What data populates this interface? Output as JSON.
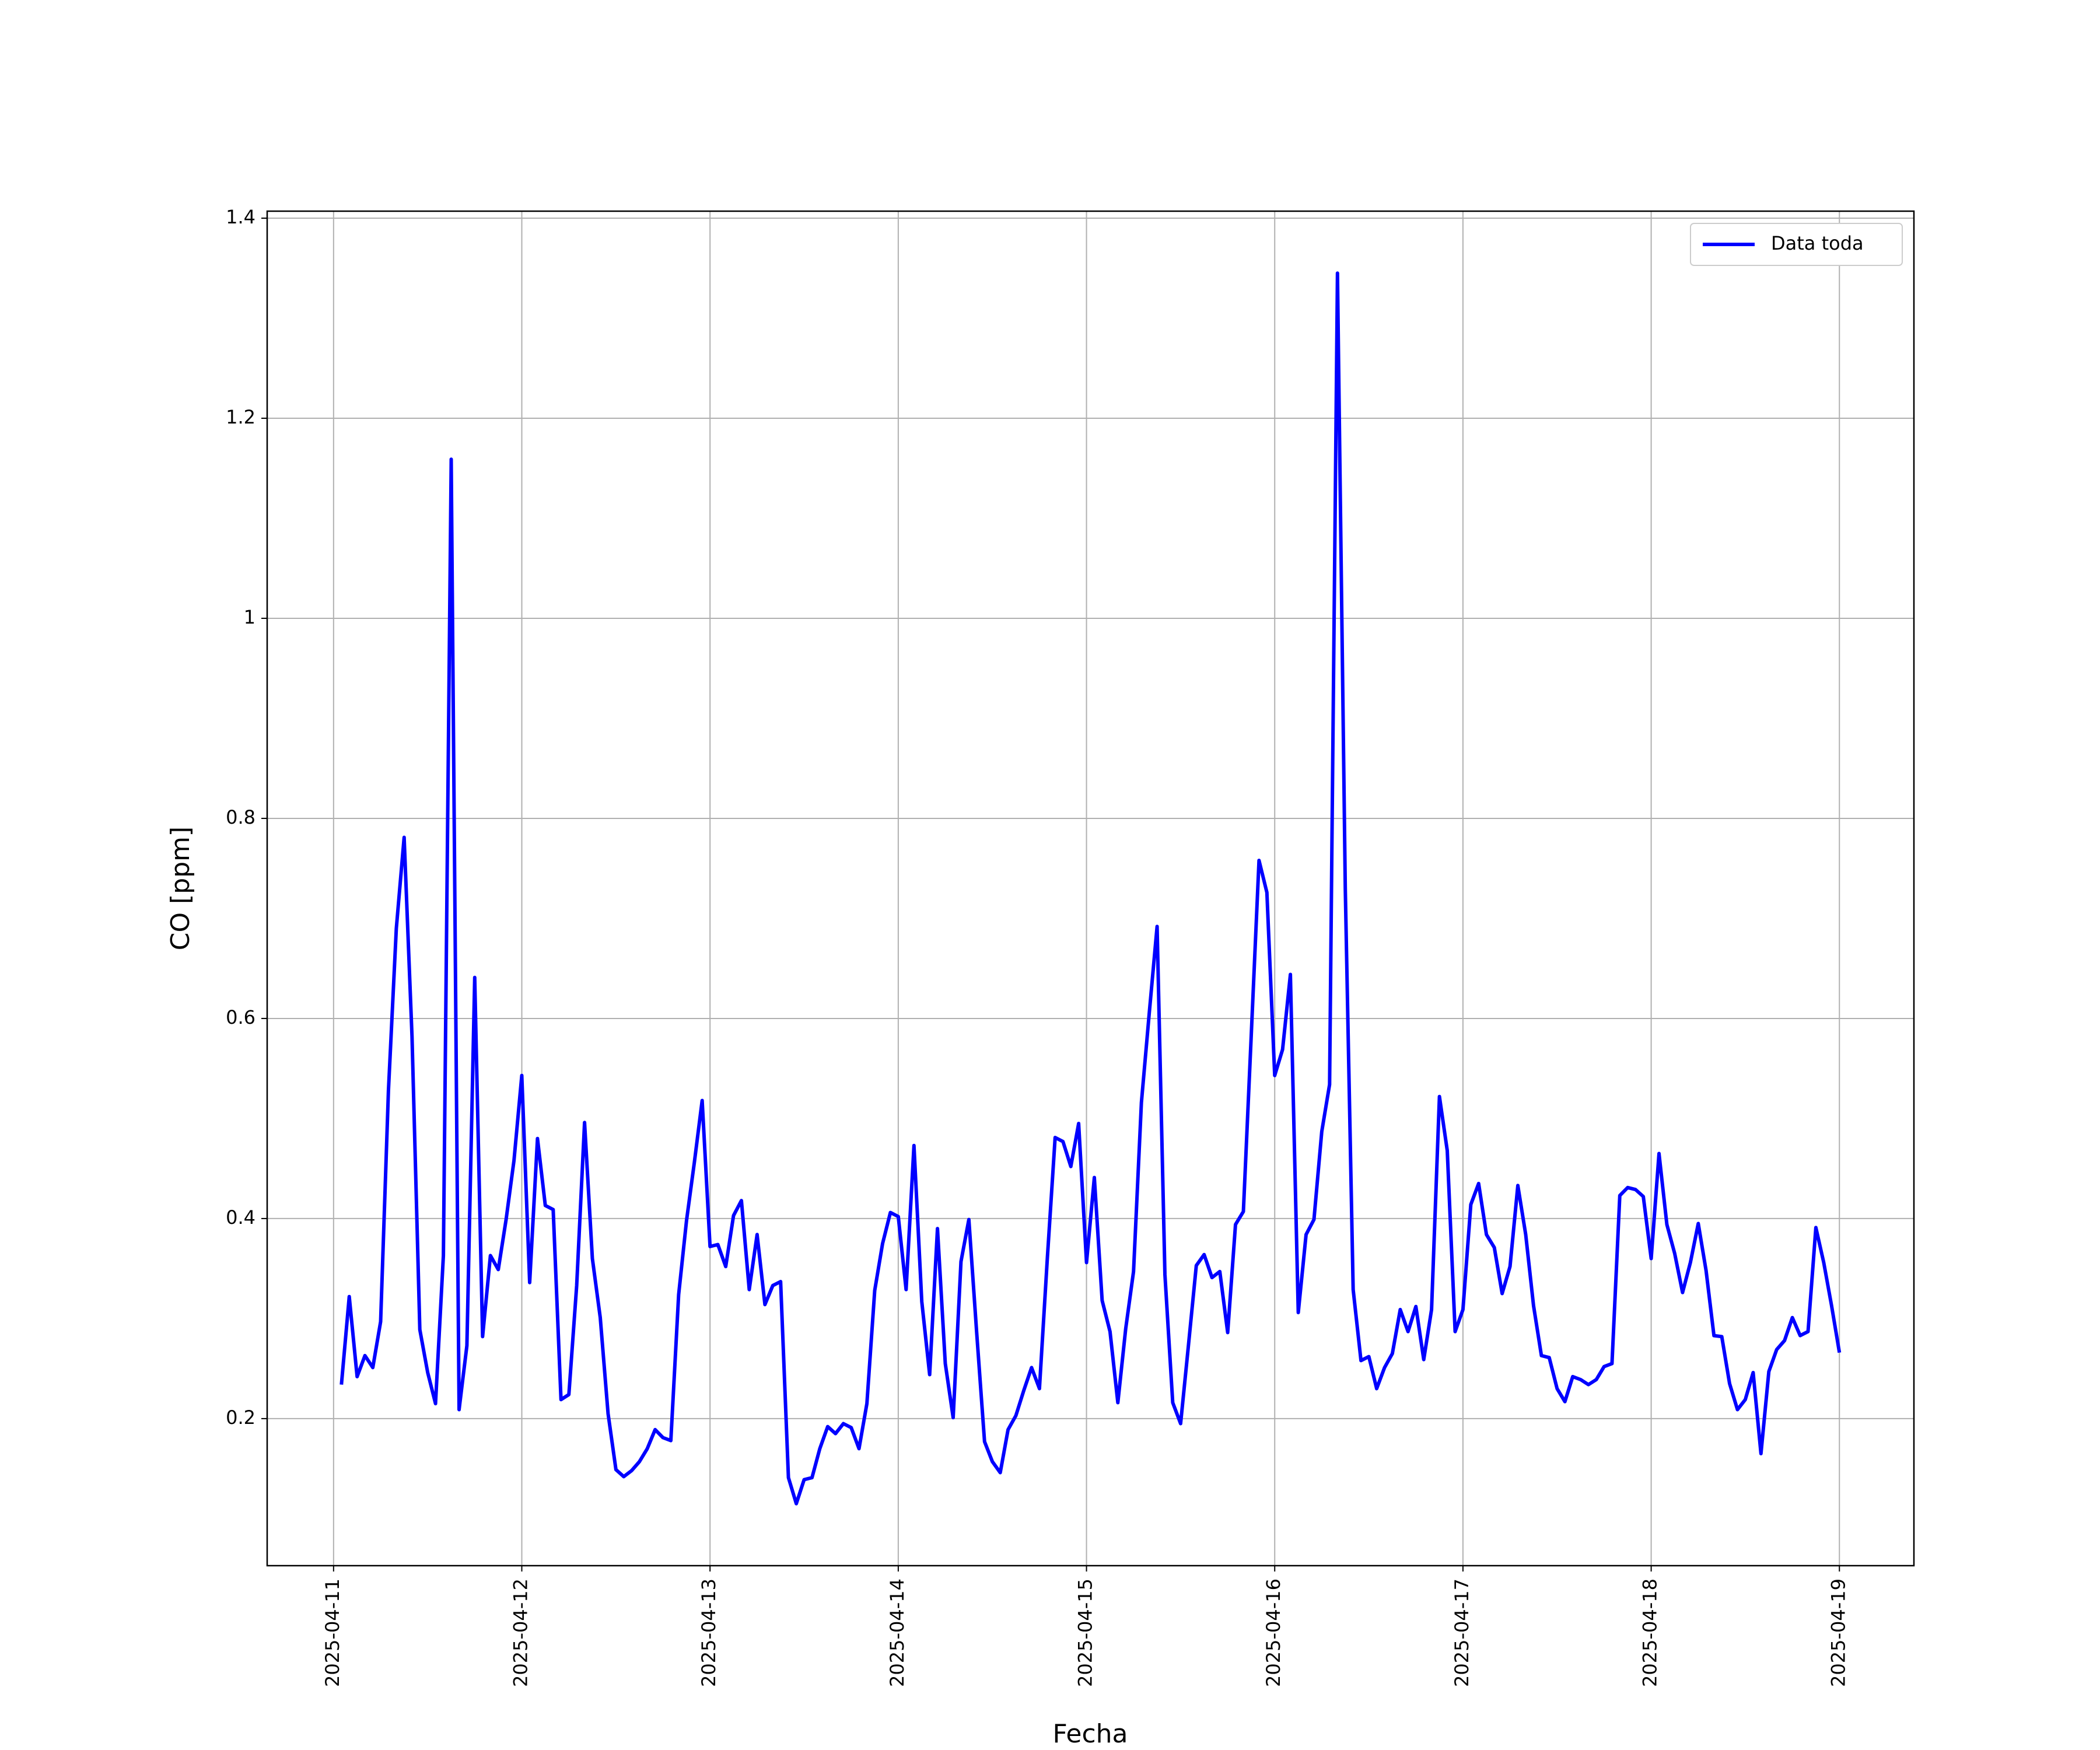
{
  "chart_data": {
    "type": "line",
    "xlabel": "Fecha",
    "ylabel": "CO [ppm]",
    "xlim": [
      "2025-04-10T15:32",
      "2025-04-19T09:30"
    ],
    "xticks": [
      "2025-04-11",
      "2025-04-12",
      "2025-04-13",
      "2025-04-14",
      "2025-04-15",
      "2025-04-16",
      "2025-04-17",
      "2025-04-18",
      "2025-04-19"
    ],
    "ylim": [
      0.053,
      1.407
    ],
    "yticks": [
      0.2,
      0.4,
      0.6,
      0.8,
      1.0,
      1.2,
      1.4
    ],
    "grid": true,
    "legend": "upper right",
    "x": [
      "2025-04-11T01:00",
      "2025-04-11T02:00",
      "2025-04-11T03:00",
      "2025-04-11T04:00",
      "2025-04-11T05:00",
      "2025-04-11T06:00",
      "2025-04-11T07:00",
      "2025-04-11T08:00",
      "2025-04-11T09:00",
      "2025-04-11T10:00",
      "2025-04-11T11:00",
      "2025-04-11T12:00",
      "2025-04-11T13:00",
      "2025-04-11T14:00",
      "2025-04-11T15:00",
      "2025-04-11T16:00",
      "2025-04-11T17:00",
      "2025-04-11T18:00",
      "2025-04-11T19:00",
      "2025-04-11T20:00",
      "2025-04-11T21:00",
      "2025-04-11T22:00",
      "2025-04-11T23:00",
      "2025-04-12T00:00",
      "2025-04-12T01:00",
      "2025-04-12T02:00",
      "2025-04-12T03:00",
      "2025-04-12T04:00",
      "2025-04-12T05:00",
      "2025-04-12T06:00",
      "2025-04-12T07:00",
      "2025-04-12T08:00",
      "2025-04-12T09:00",
      "2025-04-12T10:00",
      "2025-04-12T11:00",
      "2025-04-12T12:00",
      "2025-04-12T13:00",
      "2025-04-12T14:00",
      "2025-04-12T15:00",
      "2025-04-12T16:00",
      "2025-04-12T17:00",
      "2025-04-12T18:00",
      "2025-04-12T19:00",
      "2025-04-12T20:00",
      "2025-04-12T21:00",
      "2025-04-12T22:00",
      "2025-04-12T23:00",
      "2025-04-13T00:00",
      "2025-04-13T01:00",
      "2025-04-13T02:00",
      "2025-04-13T03:00",
      "2025-04-13T04:00",
      "2025-04-13T05:00",
      "2025-04-13T06:00",
      "2025-04-13T07:00",
      "2025-04-13T08:00",
      "2025-04-13T09:00",
      "2025-04-13T10:00",
      "2025-04-13T11:00",
      "2025-04-13T12:00",
      "2025-04-13T13:00",
      "2025-04-13T14:00",
      "2025-04-13T15:00",
      "2025-04-13T16:00",
      "2025-04-13T17:00",
      "2025-04-13T18:00",
      "2025-04-13T19:00",
      "2025-04-13T20:00",
      "2025-04-13T21:00",
      "2025-04-13T22:00",
      "2025-04-13T23:00",
      "2025-04-14T00:00",
      "2025-04-14T01:00",
      "2025-04-14T02:00",
      "2025-04-14T03:00",
      "2025-04-14T04:00",
      "2025-04-14T05:00",
      "2025-04-14T06:00",
      "2025-04-14T07:00",
      "2025-04-14T08:00",
      "2025-04-14T09:00",
      "2025-04-14T10:00",
      "2025-04-14T11:00",
      "2025-04-14T12:00",
      "2025-04-14T13:00",
      "2025-04-14T14:00",
      "2025-04-14T15:00",
      "2025-04-14T16:00",
      "2025-04-14T17:00",
      "2025-04-14T18:00",
      "2025-04-14T19:00",
      "2025-04-14T20:00",
      "2025-04-14T21:00",
      "2025-04-14T22:00",
      "2025-04-14T23:00",
      "2025-04-15T00:00",
      "2025-04-15T01:00",
      "2025-04-15T02:00",
      "2025-04-15T03:00",
      "2025-04-15T04:00",
      "2025-04-15T05:00",
      "2025-04-15T06:00",
      "2025-04-15T07:00",
      "2025-04-15T08:00",
      "2025-04-15T09:00",
      "2025-04-15T10:00",
      "2025-04-15T11:00",
      "2025-04-15T12:00",
      "2025-04-15T13:00",
      "2025-04-15T14:00",
      "2025-04-15T15:00",
      "2025-04-15T16:00",
      "2025-04-15T17:00",
      "2025-04-15T18:00",
      "2025-04-15T19:00",
      "2025-04-15T20:00",
      "2025-04-15T21:00",
      "2025-04-15T22:00",
      "2025-04-15T23:00",
      "2025-04-16T00:00",
      "2025-04-16T01:00",
      "2025-04-16T02:00",
      "2025-04-16T03:00",
      "2025-04-16T04:00",
      "2025-04-16T05:00",
      "2025-04-16T06:00",
      "2025-04-16T07:00",
      "2025-04-16T08:00",
      "2025-04-16T09:00",
      "2025-04-16T10:00",
      "2025-04-16T11:00",
      "2025-04-16T12:00",
      "2025-04-16T13:00",
      "2025-04-16T14:00",
      "2025-04-16T15:00",
      "2025-04-16T16:00",
      "2025-04-16T17:00",
      "2025-04-16T18:00",
      "2025-04-16T19:00",
      "2025-04-16T20:00",
      "2025-04-16T21:00",
      "2025-04-16T22:00",
      "2025-04-16T23:00",
      "2025-04-17T00:00",
      "2025-04-17T01:00",
      "2025-04-17T02:00",
      "2025-04-17T03:00",
      "2025-04-17T04:00",
      "2025-04-17T05:00",
      "2025-04-17T06:00",
      "2025-04-17T07:00",
      "2025-04-17T08:00",
      "2025-04-17T09:00",
      "2025-04-17T10:00",
      "2025-04-17T11:00",
      "2025-04-17T12:00",
      "2025-04-17T13:00",
      "2025-04-17T14:00",
      "2025-04-17T15:00",
      "2025-04-17T16:00",
      "2025-04-17T17:00",
      "2025-04-17T18:00",
      "2025-04-17T19:00",
      "2025-04-17T20:00",
      "2025-04-17T21:00",
      "2025-04-17T22:00",
      "2025-04-17T23:00",
      "2025-04-18T00:00",
      "2025-04-18T01:00",
      "2025-04-18T02:00",
      "2025-04-18T03:00",
      "2025-04-18T04:00",
      "2025-04-18T05:00",
      "2025-04-18T06:00",
      "2025-04-18T07:00",
      "2025-04-18T08:00",
      "2025-04-18T09:00",
      "2025-04-18T10:00",
      "2025-04-18T11:00",
      "2025-04-18T12:00",
      "2025-04-18T13:00",
      "2025-04-18T14:00",
      "2025-04-18T15:00",
      "2025-04-18T16:00",
      "2025-04-18T17:00",
      "2025-04-18T18:00",
      "2025-04-18T19:00",
      "2025-04-18T20:00",
      "2025-04-18T21:00",
      "2025-04-18T22:00",
      "2025-04-18T23:00",
      "2025-04-19T00:00"
    ],
    "series": [
      {
        "name": "Data toda",
        "color": "#0000ff",
        "values": [
          0.234,
          0.322,
          0.242,
          0.263,
          0.251,
          0.297,
          0.528,
          0.69,
          0.781,
          0.582,
          0.289,
          0.246,
          0.215,
          0.363,
          1.159,
          0.209,
          0.273,
          0.641,
          0.282,
          0.363,
          0.349,
          0.399,
          0.458,
          0.543,
          0.336,
          0.48,
          0.413,
          0.409,
          0.219,
          0.224,
          0.333,
          0.496,
          0.36,
          0.301,
          0.205,
          0.149,
          0.142,
          0.148,
          0.157,
          0.17,
          0.189,
          0.181,
          0.178,
          0.324,
          0.398,
          0.456,
          0.518,
          0.372,
          0.374,
          0.352,
          0.403,
          0.418,
          0.329,
          0.384,
          0.314,
          0.333,
          0.337,
          0.141,
          0.115,
          0.139,
          0.141,
          0.17,
          0.192,
          0.185,
          0.195,
          0.191,
          0.17,
          0.215,
          0.328,
          0.375,
          0.406,
          0.402,
          0.329,
          0.473,
          0.317,
          0.244,
          0.39,
          0.255,
          0.201,
          0.357,
          0.399,
          0.286,
          0.177,
          0.157,
          0.146,
          0.189,
          0.203,
          0.228,
          0.251,
          0.23,
          0.359,
          0.481,
          0.477,
          0.452,
          0.495,
          0.356,
          0.441,
          0.318,
          0.287,
          0.216,
          0.29,
          0.347,
          0.516,
          0.605,
          0.692,
          0.344,
          0.216,
          0.195,
          0.273,
          0.353,
          0.364,
          0.341,
          0.347,
          0.286,
          0.394,
          0.407,
          0.582,
          0.758,
          0.726,
          0.543,
          0.569,
          0.644,
          0.306,
          0.384,
          0.399,
          0.487,
          0.534,
          1.345,
          0.73,
          0.329,
          0.258,
          0.262,
          0.23,
          0.251,
          0.265,
          0.309,
          0.287,
          0.312,
          0.259,
          0.309,
          0.522,
          0.468,
          0.287,
          0.309,
          0.414,
          0.435,
          0.384,
          0.371,
          0.325,
          0.352,
          0.433,
          0.384,
          0.313,
          0.263,
          0.261,
          0.23,
          0.217,
          0.242,
          0.239,
          0.234,
          0.239,
          0.252,
          0.255,
          0.423,
          0.431,
          0.429,
          0.422,
          0.36,
          0.465,
          0.394,
          0.365,
          0.326,
          0.356,
          0.395,
          0.348,
          0.283,
          0.282,
          0.235,
          0.209,
          0.219,
          0.246,
          0.165,
          0.247,
          0.269,
          0.278,
          0.301,
          0.283,
          0.287,
          0.391,
          0.356,
          0.313,
          0.266
        ]
      }
    ]
  }
}
